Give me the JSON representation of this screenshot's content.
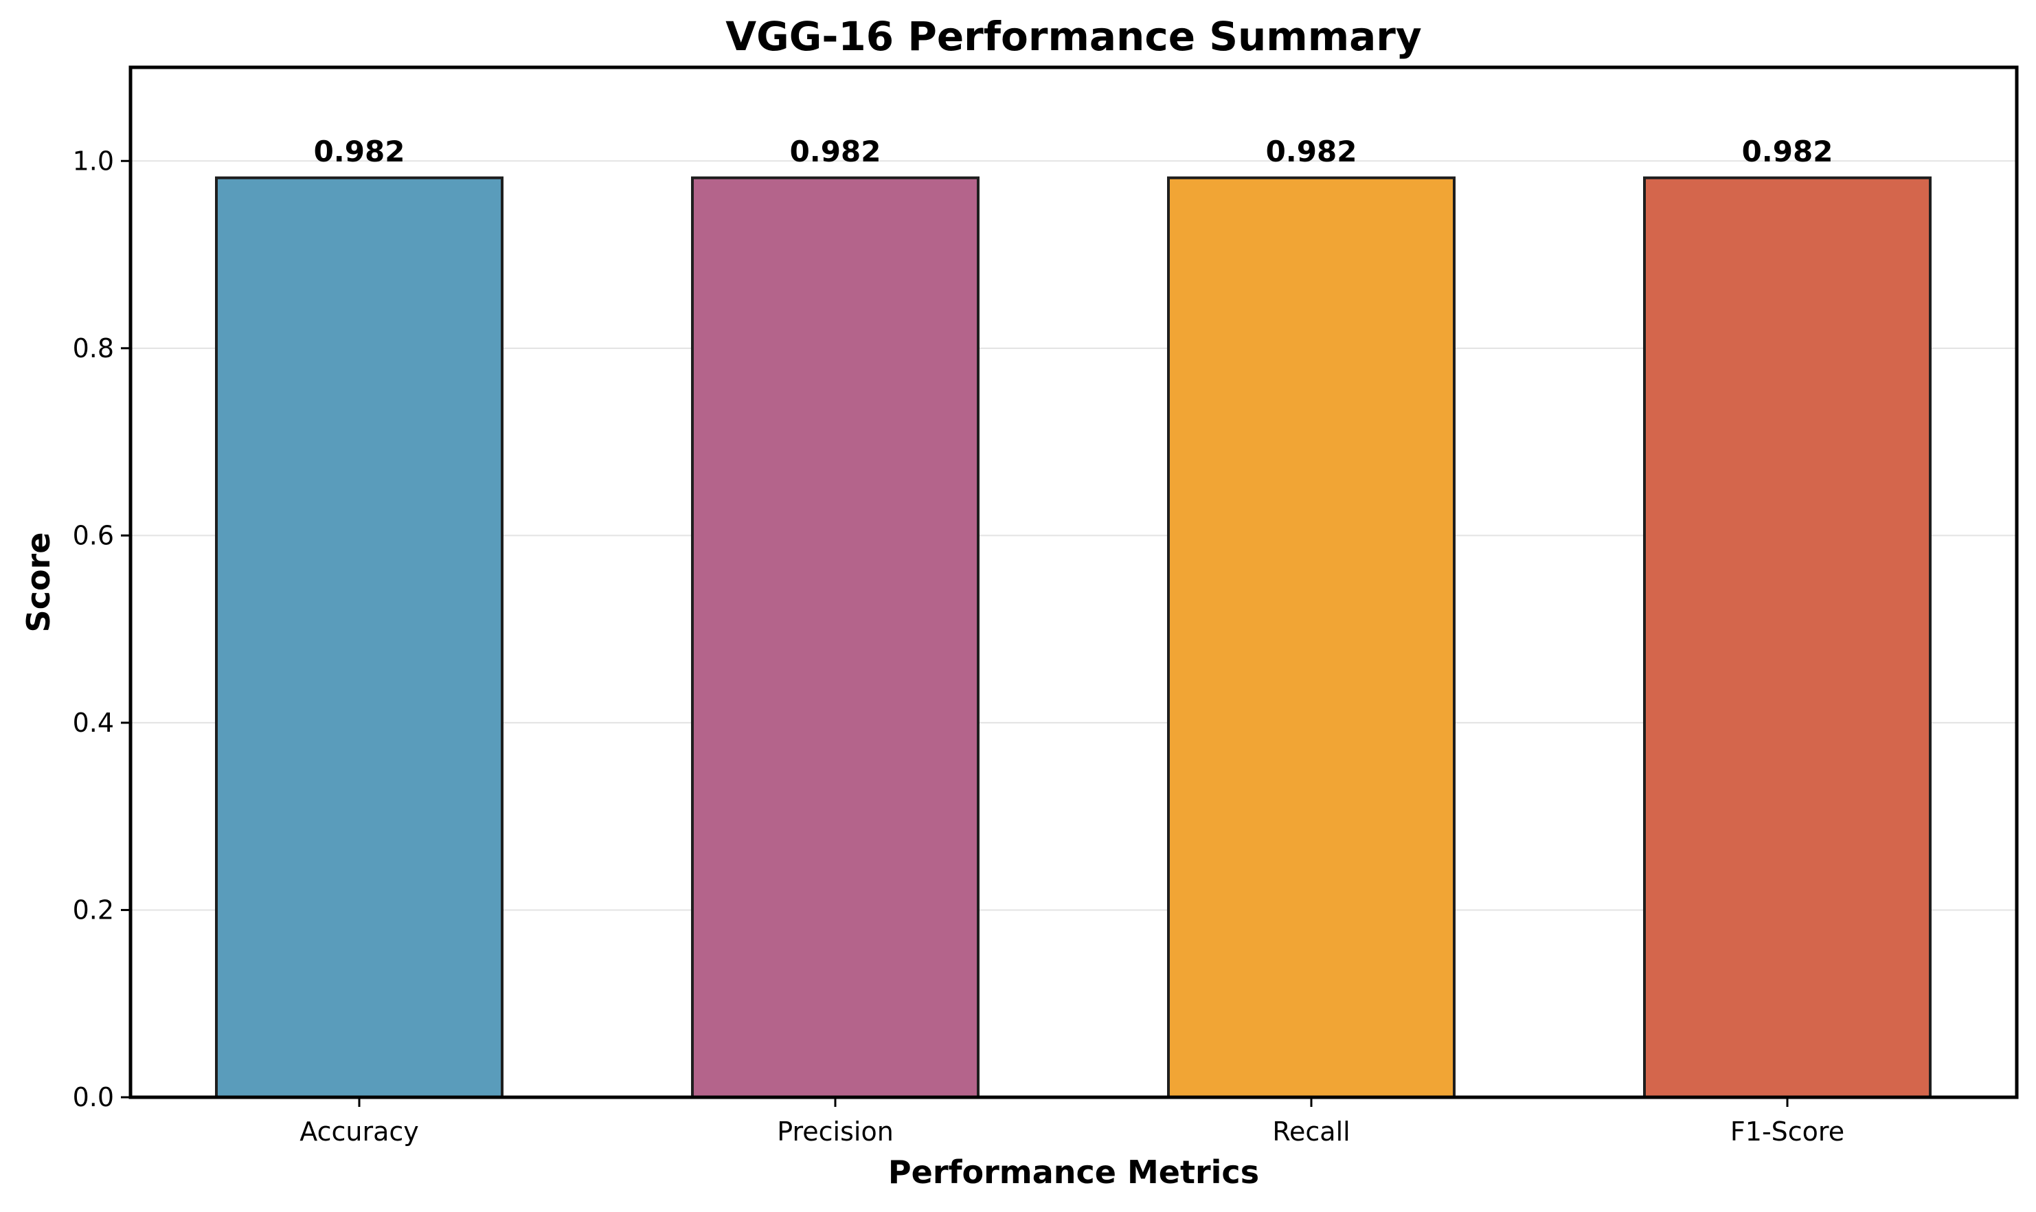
{
  "chart_data": {
    "type": "bar",
    "title": "VGG-16 Performance Summary",
    "xlabel": "Performance Metrics",
    "ylabel": "Score",
    "categories": [
      "Accuracy",
      "Precision",
      "Recall",
      "F1-Score"
    ],
    "values": [
      0.982,
      0.982,
      0.982,
      0.982
    ],
    "value_labels": [
      "0.982",
      "0.982",
      "0.982",
      "0.982"
    ],
    "colors": [
      "#5a9cbb",
      "#b4648b",
      "#f1a535",
      "#d4664c"
    ],
    "ylim": [
      0,
      1.1
    ],
    "yticks": [
      0.0,
      0.2,
      0.4,
      0.6,
      0.8,
      1.0
    ],
    "ytick_labels": [
      "0.0",
      "0.2",
      "0.4",
      "0.6",
      "0.8",
      "1.0"
    ],
    "grid": true,
    "legend": "none"
  }
}
